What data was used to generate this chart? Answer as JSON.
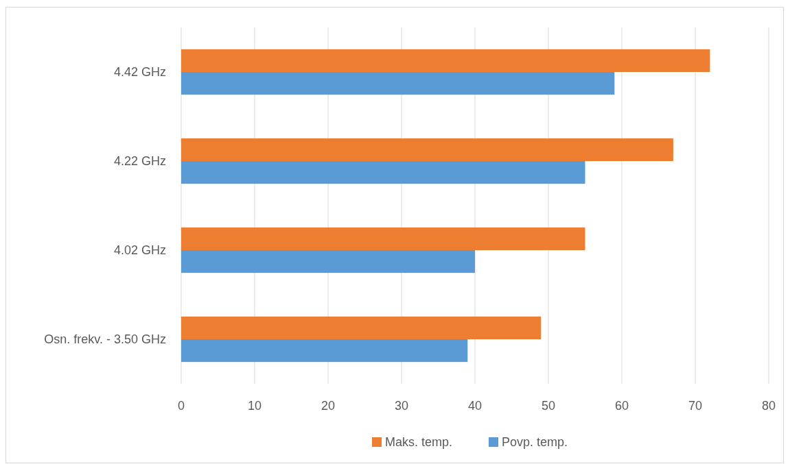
{
  "chart_data": {
    "type": "bar",
    "orientation": "horizontal",
    "categories": [
      "4.42 GHz",
      "4.22 GHz",
      "4.02 GHz",
      "Osn. frekv. - 3.50 GHz"
    ],
    "series": [
      {
        "name": "Maks. temp.",
        "color": "#ed7d31",
        "values": [
          72,
          67,
          55,
          49
        ]
      },
      {
        "name": "Povp. temp.",
        "color": "#5b9bd5",
        "values": [
          59,
          55,
          40,
          39
        ]
      }
    ],
    "xlim": [
      0,
      80
    ],
    "xticks": [
      0,
      10,
      20,
      30,
      40,
      50,
      60,
      70,
      80
    ],
    "grid": "x",
    "legend": "bottom"
  }
}
